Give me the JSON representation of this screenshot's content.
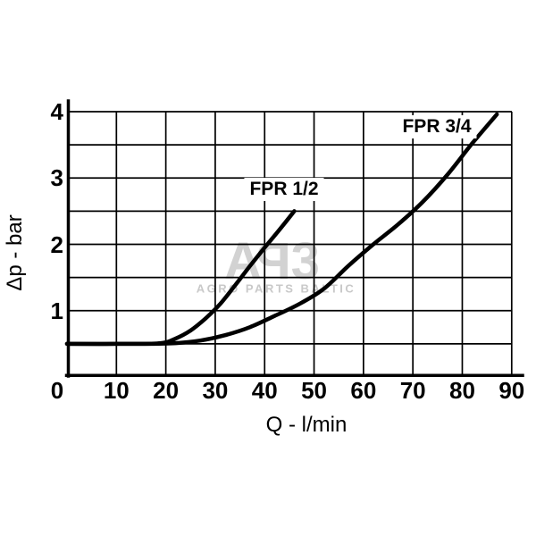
{
  "colors": {
    "line": "#000000",
    "background": "#ffffff",
    "watermark_logo": "#d2d2d2",
    "watermark_text": "#c9c9c9"
  },
  "watermark": {
    "letter_a": "A",
    "letter_p": "P",
    "letter_b": "3",
    "subtitle": "AGRO PARTS BALTIC"
  },
  "chart_data": {
    "type": "line",
    "title": "",
    "xlabel": "Q - l/min",
    "ylabel": "Δp - bar",
    "xlim": [
      0,
      90
    ],
    "ylim": [
      0,
      4
    ],
    "x_ticks": [
      0,
      10,
      20,
      30,
      40,
      50,
      60,
      70,
      80,
      90
    ],
    "y_ticks": [
      1,
      2,
      3,
      4
    ],
    "y_minor_step": 0.5,
    "grid": true,
    "legend_position": "inline-labels",
    "series": [
      {
        "name": "FPR 1/2",
        "points": [
          [
            0,
            0.5
          ],
          [
            12,
            0.5
          ],
          [
            19,
            0.51
          ],
          [
            22,
            0.58
          ],
          [
            25,
            0.7
          ],
          [
            28,
            0.88
          ],
          [
            31,
            1.1
          ],
          [
            34,
            1.38
          ],
          [
            37,
            1.67
          ],
          [
            40,
            1.95
          ],
          [
            43,
            2.22
          ],
          [
            46,
            2.5
          ]
        ]
      },
      {
        "name": "FPR 3/4",
        "points": [
          [
            0,
            0.5
          ],
          [
            15,
            0.5
          ],
          [
            22,
            0.51
          ],
          [
            27,
            0.55
          ],
          [
            32,
            0.63
          ],
          [
            37,
            0.75
          ],
          [
            42,
            0.92
          ],
          [
            47,
            1.1
          ],
          [
            52,
            1.33
          ],
          [
            57,
            1.68
          ],
          [
            62,
            2.0
          ],
          [
            67,
            2.3
          ],
          [
            72,
            2.64
          ],
          [
            77,
            3.05
          ],
          [
            82,
            3.52
          ],
          [
            87,
            3.96
          ]
        ]
      }
    ]
  }
}
